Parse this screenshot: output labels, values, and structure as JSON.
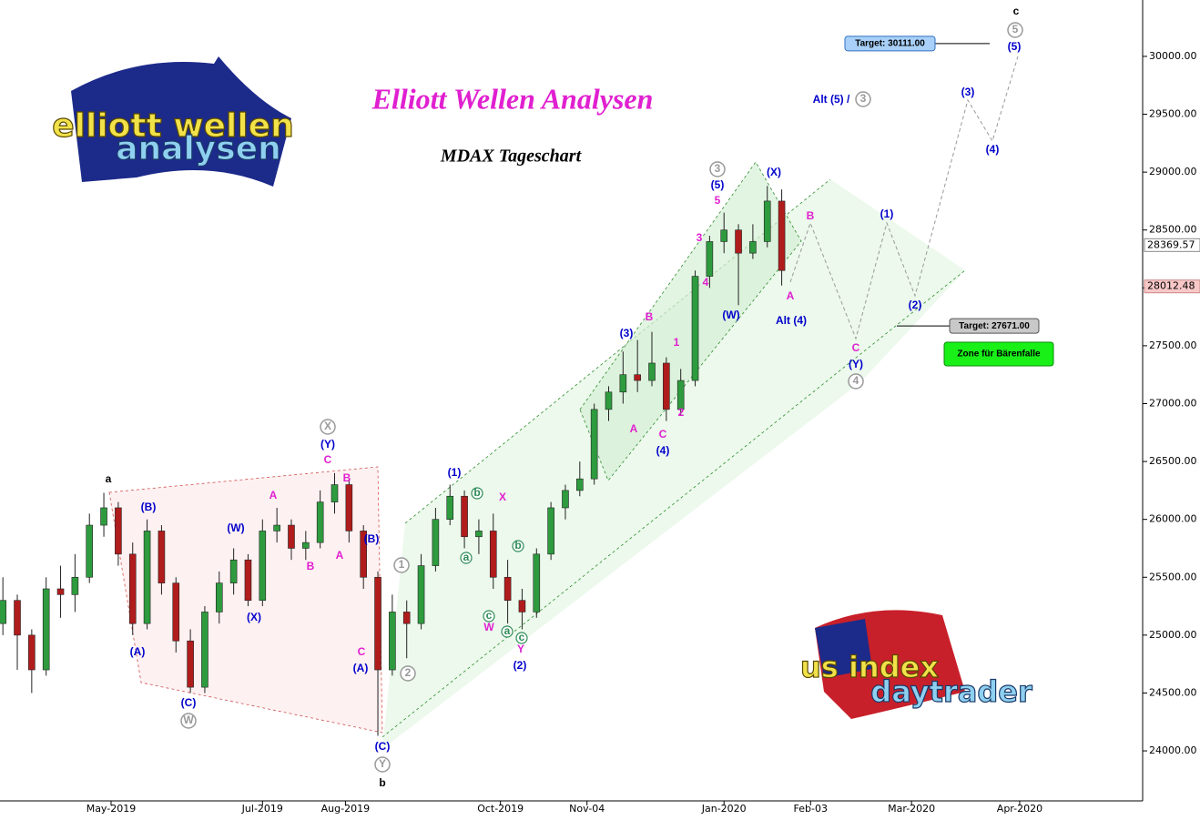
{
  "chart_data": {
    "type": "candlestick",
    "title": "Elliott Wellen Analysen",
    "subtitle": "MDAX Tageschart",
    "logo_top": [
      "elliott wellen",
      "analysen"
    ],
    "logo_bottom": [
      "us index",
      "daytrader"
    ],
    "up_color": "#2e9b3e",
    "down_color": "#b01c1c",
    "candles": {
      "x": [
        -30,
        -26,
        -22,
        -18,
        -14,
        -10,
        -6,
        -2,
        2,
        6,
        10,
        14,
        18,
        22,
        26,
        30,
        34,
        38,
        42,
        46,
        50,
        54,
        58,
        62,
        66,
        70,
        74,
        78,
        82,
        86,
        90,
        94,
        98,
        102,
        106,
        110,
        114,
        118,
        122,
        126,
        130,
        134,
        138,
        142,
        146,
        150,
        154,
        158,
        162,
        166,
        170,
        174,
        178,
        182,
        186
      ],
      "open": [
        25100,
        25300,
        25000,
        24700,
        25400,
        25350,
        25500,
        25950,
        26100,
        25700,
        25100,
        25900,
        25450,
        24950,
        24550,
        25200,
        25450,
        25650,
        25300,
        25900,
        25950,
        25750,
        25800,
        26150,
        26300,
        25900,
        25500,
        24700,
        25200,
        25100,
        25600,
        26000,
        26200,
        25850,
        25900,
        25500,
        25300,
        25200,
        25700,
        26100,
        26250,
        26350,
        26950,
        27100,
        27250,
        27200,
        27350,
        26950,
        27200,
        28100,
        28400,
        28500,
        28300,
        28400,
        28750
      ],
      "high": [
        25500,
        25350,
        25050,
        25500,
        25600,
        25700,
        26050,
        26230,
        26150,
        25800,
        26000,
        25950,
        25500,
        25050,
        25250,
        25550,
        25750,
        25700,
        26000,
        26100,
        26000,
        25900,
        26250,
        26400,
        26350,
        25950,
        25550,
        25350,
        25300,
        25700,
        26100,
        26300,
        26250,
        26000,
        26050,
        25650,
        25400,
        25750,
        26150,
        26300,
        26500,
        27000,
        27150,
        27450,
        27550,
        27620,
        27400,
        27300,
        28150,
        28450,
        28650,
        28550,
        28550,
        28880,
        28850
      ],
      "low": [
        25000,
        24700,
        24500,
        24650,
        25150,
        25200,
        25450,
        25850,
        25600,
        25000,
        25050,
        25350,
        24850,
        24500,
        24500,
        25100,
        25350,
        25250,
        25250,
        25800,
        25650,
        25650,
        25750,
        26050,
        25800,
        25400,
        24130,
        24650,
        24800,
        25050,
        25550,
        25950,
        25750,
        25700,
        25400,
        25100,
        25050,
        25150,
        25650,
        26000,
        26200,
        26300,
        26850,
        27000,
        27100,
        27150,
        26850,
        26900,
        27150,
        28000,
        28300,
        27850,
        28250,
        28350,
        28020
      ],
      "close": [
        25300,
        25000,
        24700,
        25400,
        25350,
        25500,
        25950,
        26100,
        25700,
        25100,
        25900,
        25450,
        24950,
        24550,
        25200,
        25450,
        25650,
        25300,
        25900,
        25950,
        25750,
        25800,
        26150,
        26300,
        25900,
        25500,
        24700,
        25200,
        25100,
        25600,
        26000,
        26200,
        25850,
        25900,
        25500,
        25300,
        25200,
        25700,
        26100,
        26250,
        26350,
        26950,
        27100,
        27250,
        27200,
        27350,
        26950,
        27200,
        28100,
        28400,
        28500,
        28300,
        28400,
        28750,
        28150
      ]
    },
    "xlim": [
      -30.8,
      286.1
    ],
    "ylim": [
      23568,
      30487
    ],
    "xticks": [
      {
        "value": 0,
        "label": "May-2019"
      },
      {
        "value": 42,
        "label": "Jul-2019"
      },
      {
        "value": 65,
        "label": "Aug-2019"
      },
      {
        "value": 108,
        "label": "Oct-2019"
      },
      {
        "value": 132,
        "label": "Nov-04"
      },
      {
        "value": 170,
        "label": "Jan-2020"
      },
      {
        "value": 194,
        "label": "Feb-03"
      },
      {
        "value": 222,
        "label": "Mar-2020"
      },
      {
        "value": 252,
        "label": "Apr-2020"
      }
    ],
    "yticks": [
      {
        "value": 24000,
        "label": "24000.00"
      },
      {
        "value": 24500,
        "label": "24500.00"
      },
      {
        "value": 25000,
        "label": "25000.00"
      },
      {
        "value": 25500,
        "label": "25500.00"
      },
      {
        "value": 26000,
        "label": "26000.00"
      },
      {
        "value": 26500,
        "label": "26500.00"
      },
      {
        "value": 27000,
        "label": "27000.00"
      },
      {
        "value": 27500,
        "label": "27500.00"
      },
      {
        "value": 28000,
        "label": "28000.00"
      },
      {
        "value": 28500,
        "label": "28500.00"
      },
      {
        "value": 29000,
        "label": "29000.00"
      },
      {
        "value": 29500,
        "label": "29500.00"
      },
      {
        "value": 30000,
        "label": "30000.00"
      }
    ],
    "price_tags": [
      {
        "value": 28369.57,
        "label": "28369.57"
      },
      {
        "value": 28012.48,
        "label": "28012.48"
      }
    ],
    "targets": [
      {
        "value": 30111,
        "label": "Target: 30111.00"
      },
      {
        "value": 27671,
        "label": "Target: 27671.00"
      }
    ],
    "zone_label": "Zone für Bärenfalle",
    "wave_labels": [
      "a",
      "(B)",
      "(A)",
      "(C)",
      "W",
      "(W)",
      "(X)",
      "A",
      "B",
      "X",
      "(Y)",
      "C",
      "B",
      "A",
      "(B)",
      "C",
      "(A)",
      "(C)",
      "Y",
      "b",
      "1",
      "2",
      "(1)",
      "b",
      "a",
      "X",
      "b",
      "c",
      "W",
      "a",
      "c",
      "Y",
      "(2)",
      "(3)",
      "B",
      "A",
      "C",
      "(4)",
      "1",
      "2",
      "3",
      "4",
      "5",
      "(5)",
      "3",
      "(W)",
      "(X)",
      "B",
      "A",
      "Alt (4)",
      "(1)",
      "(2)",
      "C",
      "(Y)",
      "4",
      "(3)",
      "(4)",
      "5",
      "(5)",
      "c",
      "Alt (5) /",
      "3"
    ]
  }
}
